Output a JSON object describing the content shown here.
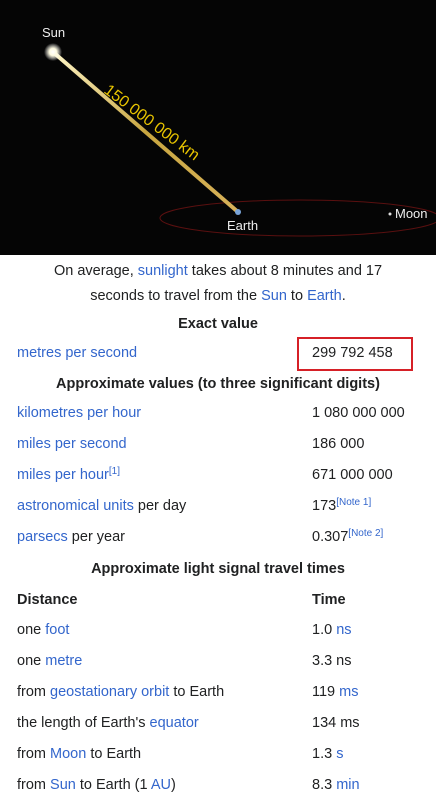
{
  "image": {
    "sun": "Sun",
    "distance": "150 000 000 km",
    "earth": "Earth",
    "moon": "Moon"
  },
  "caption": [
    {
      "text": "On average, "
    },
    {
      "text": "sunlight",
      "link": true
    },
    {
      "text": " takes about 8 minutes and 17 seconds to travel from the "
    },
    {
      "text": "Sun",
      "link": true
    },
    {
      "text": " to "
    },
    {
      "text": "Earth",
      "link": true
    },
    {
      "text": "."
    }
  ],
  "exact": {
    "heading": "Exact value",
    "rows": [
      {
        "label": [
          {
            "text": "metres per second",
            "link": true
          }
        ],
        "value": [
          {
            "text": "299 792 458"
          }
        ],
        "highlight": true
      }
    ]
  },
  "approx": {
    "heading": "Approximate values (to three significant digits)",
    "rows": [
      {
        "label": [
          {
            "text": "kilometres per hour",
            "link": true
          }
        ],
        "value": [
          {
            "text": "1 080 000 000"
          }
        ]
      },
      {
        "label": [
          {
            "text": "miles per second",
            "link": true
          }
        ],
        "value": [
          {
            "text": "186 000"
          }
        ]
      },
      {
        "label": [
          {
            "text": "miles per hour",
            "link": true
          },
          {
            "text": "[1]",
            "link": true,
            "sup": true
          }
        ],
        "value": [
          {
            "text": "671 000 000"
          }
        ]
      },
      {
        "label": [
          {
            "text": "astronomical units",
            "link": true
          },
          {
            "text": " per day"
          }
        ],
        "value": [
          {
            "text": "173"
          },
          {
            "text": "[Note 1]",
            "link": true,
            "sup": true
          }
        ]
      },
      {
        "label": [
          {
            "text": "parsecs",
            "link": true
          },
          {
            "text": " per year"
          }
        ],
        "value": [
          {
            "text": "0.307"
          },
          {
            "text": "[Note 2]",
            "link": true,
            "sup": true
          }
        ]
      }
    ]
  },
  "travel": {
    "heading": "Approximate light signal travel times",
    "columns": [
      "Distance",
      "Time"
    ],
    "rows": [
      {
        "label": [
          {
            "text": "one "
          },
          {
            "text": "foot",
            "link": true
          }
        ],
        "value": [
          {
            "text": "1.0 "
          },
          {
            "text": "ns",
            "link": true
          }
        ]
      },
      {
        "label": [
          {
            "text": "one "
          },
          {
            "text": "metre",
            "link": true
          }
        ],
        "value": [
          {
            "text": "3.3 ns"
          }
        ]
      },
      {
        "label": [
          {
            "text": "from "
          },
          {
            "text": "geostationary orbit",
            "link": true
          },
          {
            "text": " to Earth"
          }
        ],
        "value": [
          {
            "text": "119 "
          },
          {
            "text": "ms",
            "link": true
          }
        ]
      },
      {
        "label": [
          {
            "text": "the length of Earth's "
          },
          {
            "text": "equator",
            "link": true
          }
        ],
        "value": [
          {
            "text": "134 ms"
          }
        ]
      },
      {
        "label": [
          {
            "text": "from "
          },
          {
            "text": "Moon",
            "link": true
          },
          {
            "text": " to Earth"
          }
        ],
        "value": [
          {
            "text": "1.3 "
          },
          {
            "text": "s",
            "link": true
          }
        ]
      },
      {
        "label": [
          {
            "text": "from "
          },
          {
            "text": "Sun",
            "link": true
          },
          {
            "text": " to Earth (1 "
          },
          {
            "text": "AU",
            "link": true
          },
          {
            "text": ")"
          }
        ],
        "value": [
          {
            "text": "8.3 "
          },
          {
            "text": "min",
            "link": true
          }
        ]
      }
    ]
  }
}
